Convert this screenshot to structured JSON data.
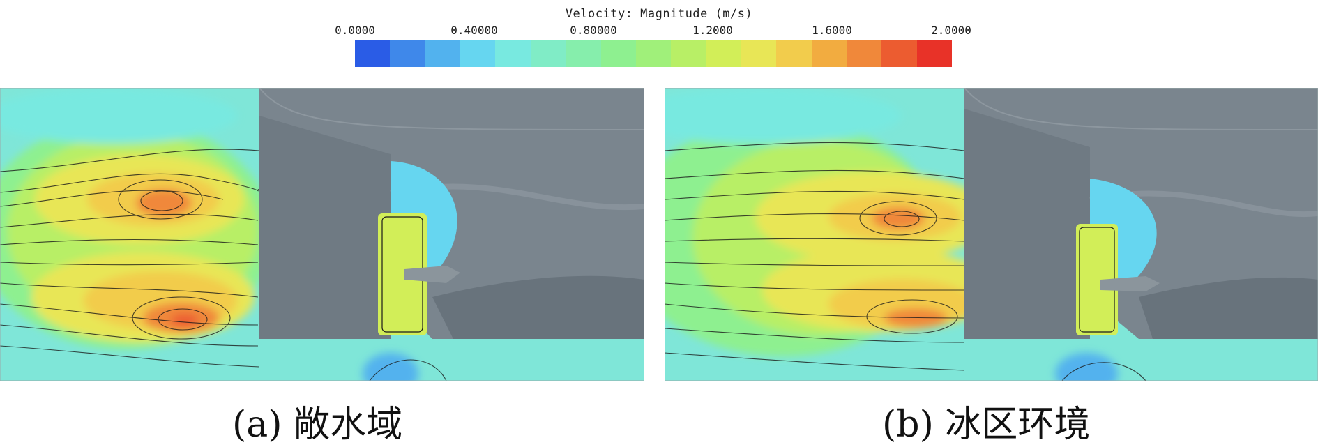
{
  "legend": {
    "title": "Velocity: Magnitude (m/s)",
    "ticks": [
      "0.0000",
      "0.40000",
      "0.80000",
      "1.2000",
      "1.6000",
      "2.0000"
    ],
    "colors": [
      "#2a5ce6",
      "#3f88ea",
      "#52b2ee",
      "#66d6f0",
      "#78e9e0",
      "#80ecc6",
      "#86eeac",
      "#8ef090",
      "#a0f07a",
      "#b8ef66",
      "#d2ee58",
      "#e8e656",
      "#f2cc4c",
      "#f2ac40",
      "#f0883a",
      "#ec5c30",
      "#e83228"
    ]
  },
  "panels": [
    {
      "caption": "(a) 敞水域"
    },
    {
      "caption": "(b) 冰区环境"
    }
  ]
}
